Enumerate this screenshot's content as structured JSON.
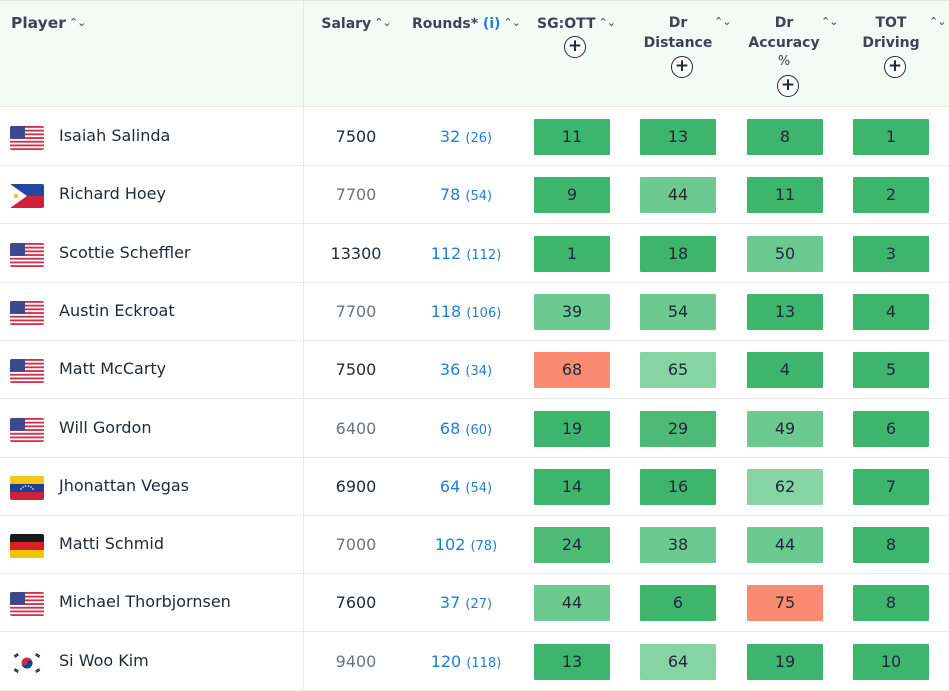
{
  "colors": {
    "very_good": "#3eb56d",
    "good": "#4dbb76",
    "ok": "#6cc98f",
    "fair": "#86d3a3",
    "bad": "#fb8a72",
    "link": "#1e7fd4",
    "header_bg": "#f2fbf6"
  },
  "header": {
    "player": "Player",
    "salary": "Salary",
    "rounds": "Rounds",
    "rounds_asterisk": "*",
    "rounds_info": "(i)",
    "sg_ott": "SG:OTT",
    "dr_distance_1": "Dr",
    "dr_distance_2": "Distance",
    "dr_accuracy_1": "Dr",
    "dr_accuracy_2": "Accuracy",
    "dr_accuracy_3": "%",
    "tot_driving_1": "TOT",
    "tot_driving_2": "Driving"
  },
  "icons": {
    "sort": "sort-updown-icon",
    "add": "plus-circle-icon"
  },
  "rows": [
    {
      "name": "Isaiah Salinda",
      "flag": "usa",
      "salary": "7500",
      "salary_style": "dark",
      "rounds": "32",
      "rounds_sub": "(26)",
      "sg_ott": "11",
      "dr_distance": "13",
      "dr_accuracy": "8",
      "tot_driving": "1",
      "tiers": [
        "very_good",
        "very_good",
        "very_good",
        "very_good"
      ]
    },
    {
      "name": "Richard Hoey",
      "flag": "philippines",
      "salary": "7700",
      "salary_style": "grey",
      "rounds": "78",
      "rounds_sub": "(54)",
      "sg_ott": "9",
      "dr_distance": "44",
      "dr_accuracy": "11",
      "tot_driving": "2",
      "tiers": [
        "very_good",
        "ok",
        "very_good",
        "very_good"
      ]
    },
    {
      "name": "Scottie Scheffler",
      "flag": "usa",
      "salary": "13300",
      "salary_style": "dark",
      "rounds": "112",
      "rounds_sub": "(112)",
      "sg_ott": "1",
      "dr_distance": "18",
      "dr_accuracy": "50",
      "tot_driving": "3",
      "tiers": [
        "very_good",
        "very_good",
        "ok",
        "very_good"
      ]
    },
    {
      "name": "Austin Eckroat",
      "flag": "usa",
      "salary": "7700",
      "salary_style": "grey",
      "rounds": "118",
      "rounds_sub": "(106)",
      "sg_ott": "39",
      "dr_distance": "54",
      "dr_accuracy": "13",
      "tot_driving": "4",
      "tiers": [
        "ok",
        "ok",
        "very_good",
        "very_good"
      ]
    },
    {
      "name": "Matt McCarty",
      "flag": "usa",
      "salary": "7500",
      "salary_style": "dark",
      "rounds": "36",
      "rounds_sub": "(34)",
      "sg_ott": "68",
      "dr_distance": "65",
      "dr_accuracy": "4",
      "tot_driving": "5",
      "tiers": [
        "bad",
        "fair",
        "very_good",
        "very_good"
      ]
    },
    {
      "name": "Will Gordon",
      "flag": "usa",
      "salary": "6400",
      "salary_style": "grey",
      "rounds": "68",
      "rounds_sub": "(60)",
      "sg_ott": "19",
      "dr_distance": "29",
      "dr_accuracy": "49",
      "tot_driving": "6",
      "tiers": [
        "very_good",
        "good",
        "ok",
        "very_good"
      ]
    },
    {
      "name": "Jhonattan Vegas",
      "flag": "venezuela",
      "salary": "6900",
      "salary_style": "dark",
      "rounds": "64",
      "rounds_sub": "(54)",
      "sg_ott": "14",
      "dr_distance": "16",
      "dr_accuracy": "62",
      "tot_driving": "7",
      "tiers": [
        "very_good",
        "very_good",
        "fair",
        "very_good"
      ]
    },
    {
      "name": "Matti Schmid",
      "flag": "germany",
      "salary": "7000",
      "salary_style": "grey",
      "rounds": "102",
      "rounds_sub": "(78)",
      "sg_ott": "24",
      "dr_distance": "38",
      "dr_accuracy": "44",
      "tot_driving": "8",
      "tiers": [
        "good",
        "ok",
        "ok",
        "very_good"
      ]
    },
    {
      "name": "Michael Thorbjornsen",
      "flag": "usa",
      "salary": "7600",
      "salary_style": "dark",
      "rounds": "37",
      "rounds_sub": "(27)",
      "sg_ott": "44",
      "dr_distance": "6",
      "dr_accuracy": "75",
      "tot_driving": "8",
      "tiers": [
        "ok",
        "very_good",
        "bad",
        "very_good"
      ]
    },
    {
      "name": "Si Woo Kim",
      "flag": "south-korea",
      "salary": "9400",
      "salary_style": "grey",
      "rounds": "120",
      "rounds_sub": "(118)",
      "sg_ott": "13",
      "dr_distance": "64",
      "dr_accuracy": "19",
      "tot_driving": "10",
      "tiers": [
        "very_good",
        "fair",
        "very_good",
        "very_good"
      ]
    }
  ]
}
